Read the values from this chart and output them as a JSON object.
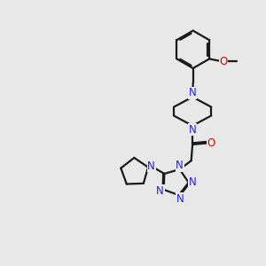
{
  "background_color": "#e8e8e8",
  "bond_color": "#1a1a1a",
  "nitrogen_color": "#2222dd",
  "oxygen_color": "#dd0000",
  "line_width": 1.6,
  "figsize": [
    3.0,
    3.0
  ],
  "dpi": 100,
  "xlim": [
    0,
    10
  ],
  "ylim": [
    0,
    10
  ]
}
